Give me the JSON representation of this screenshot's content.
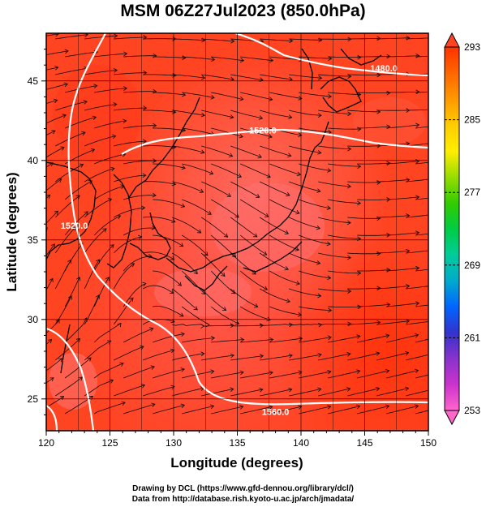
{
  "title": "MSM 06Z27Jul2023 (850.0hPa)",
  "x_axis": {
    "label": "Longitude (degrees)",
    "range": [
      120,
      150
    ],
    "ticks": [
      120,
      125,
      130,
      135,
      140,
      145,
      150
    ]
  },
  "y_axis": {
    "label": "Latitude (degrees)",
    "range": [
      23,
      48
    ],
    "ticks": [
      25,
      30,
      35,
      40,
      45
    ]
  },
  "colorbar": {
    "ticks": [
      253,
      261,
      269,
      277,
      285,
      293
    ],
    "range": [
      253,
      293
    ],
    "colors": [
      "#ff66cc",
      "#cc33cc",
      "#8833cc",
      "#3333cc",
      "#0066ff",
      "#00aacc",
      "#00cc99",
      "#00cc44",
      "#33cc00",
      "#99dd00",
      "#ffee00",
      "#ffcc00",
      "#ff9900",
      "#ff6600",
      "#ff3300"
    ]
  },
  "contours": [
    {
      "label": "1480.0",
      "lon": 146.5,
      "lat": 45.6
    },
    {
      "label": "1520.0",
      "lon": 137.0,
      "lat": 41.7
    },
    {
      "label": "1520.0",
      "lon": 122.2,
      "lat": 35.7
    },
    {
      "label": "1560.0",
      "lon": 138.0,
      "lat": 24.0
    }
  ],
  "credits": {
    "line1": "Drawing by DCL (https://www.gfd-dennou.org/library/dcl/)",
    "line2": "Data from http://database.rish.kyoto-u.ac.jp/arch/jmadata/"
  },
  "chart_data": {
    "type": "heatmap",
    "title": "MSM 06Z27Jul2023 (850.0hPa)",
    "xlabel": "Longitude (degrees)",
    "ylabel": "Latitude (degrees)",
    "xlim": [
      120,
      150
    ],
    "ylim": [
      23,
      48
    ],
    "color_scale": [
      253,
      293
    ],
    "field_range_estimate": [
      289,
      293
    ],
    "contour_levels": [
      1480.0,
      1520.0,
      1560.0
    ],
    "overlay": "streamlines"
  }
}
